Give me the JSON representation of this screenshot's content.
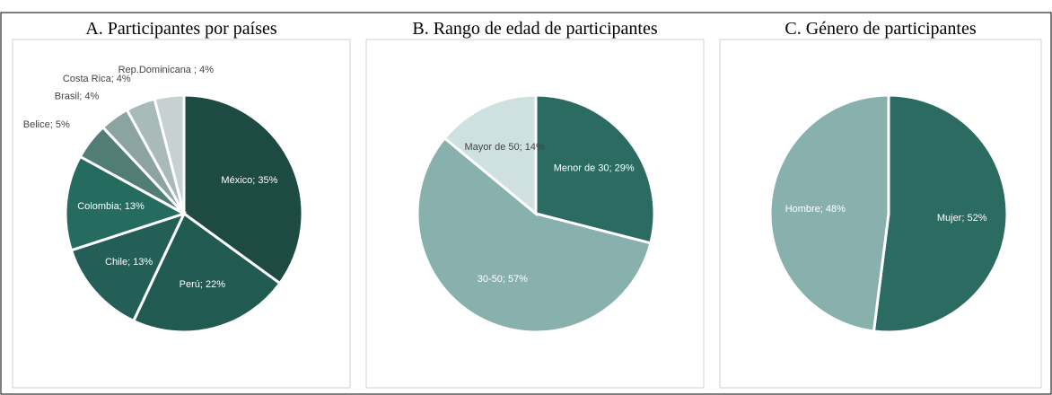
{
  "chart_data": [
    {
      "type": "pie",
      "title": "A. Participantes por países",
      "categories": [
        "México",
        "Perú",
        "Chile",
        "Colombia",
        "Belice",
        "Brasil",
        "Costa Rica",
        "Rep.Dominicana"
      ],
      "values": [
        35,
        22,
        13,
        13,
        5,
        4,
        4,
        4
      ],
      "value_labels": [
        "México; 35%",
        "Perú; 22%",
        "Chile; 13%",
        "Colombia; 13%",
        "Belice; 5%",
        "Brasil; 4%",
        "Costa Rica; 4%",
        "Rep.Dominicana ; 4%"
      ],
      "colors": [
        "#1d4a42",
        "#215a50",
        "#235f56",
        "#266b60",
        "#527c76",
        "#8ba4a1",
        "#a9bbb9",
        "#c6d1d0"
      ]
    },
    {
      "type": "pie",
      "title": "B. Rango de edad de participantes",
      "categories": [
        "Menor de 30",
        "30-50",
        "Mayor de 50"
      ],
      "values": [
        29,
        57,
        14
      ],
      "value_labels": [
        "Menor de 30; 29%",
        "30-50; 57%",
        "Mayor de 50; 14%"
      ],
      "colors": [
        "#2b6b62",
        "#88b0ad",
        "#cee0df"
      ]
    },
    {
      "type": "pie",
      "title": "C. Género de participantes",
      "categories": [
        "Mujer",
        "Hombre"
      ],
      "values": [
        52,
        48
      ],
      "value_labels": [
        "Mujer; 52%",
        "Hombre; 48%"
      ],
      "colors": [
        "#2b6b62",
        "#88b0ad"
      ]
    }
  ]
}
